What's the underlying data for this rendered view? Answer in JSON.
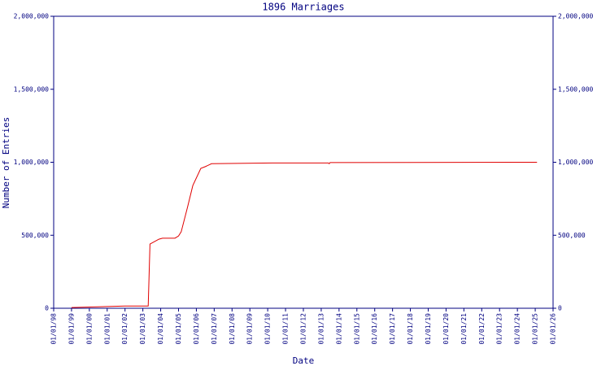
{
  "chart_data": {
    "type": "line",
    "title": "1896 Marriages",
    "x_label": "Date",
    "y_label": "Number of Entries",
    "x": [
      1999.0,
      2002.0,
      2003.3,
      2003.4,
      2003.9,
      2004.1,
      2004.8,
      2005.0,
      2005.15,
      2005.5,
      2005.8,
      2006.25,
      2006.5,
      2006.85,
      2010.25,
      2013.4,
      2013.45,
      2013.5,
      2025.1
    ],
    "series": [
      {
        "name": "Entries",
        "color": "#e00000",
        "values": [
          5000,
          15000,
          15000,
          440000,
          473000,
          480000,
          480000,
          495000,
          524000,
          690000,
          840000,
          958000,
          970000,
          990000,
          995000,
          995000,
          990000,
          998000,
          1000000
        ]
      }
    ],
    "xlim": [
      1998,
      2026
    ],
    "xticks": [
      {
        "value": 1998,
        "label": "01/01/98"
      },
      {
        "value": 1999,
        "label": "01/01/99"
      },
      {
        "value": 2000,
        "label": "01/01/00"
      },
      {
        "value": 2001,
        "label": "01/01/01"
      },
      {
        "value": 2002,
        "label": "01/01/02"
      },
      {
        "value": 2003,
        "label": "01/01/03"
      },
      {
        "value": 2004,
        "label": "01/01/04"
      },
      {
        "value": 2005,
        "label": "01/01/05"
      },
      {
        "value": 2006,
        "label": "01/01/06"
      },
      {
        "value": 2007,
        "label": "01/01/07"
      },
      {
        "value": 2008,
        "label": "01/01/08"
      },
      {
        "value": 2009,
        "label": "01/01/09"
      },
      {
        "value": 2010,
        "label": "01/01/10"
      },
      {
        "value": 2011,
        "label": "01/01/11"
      },
      {
        "value": 2012,
        "label": "01/01/12"
      },
      {
        "value": 2013,
        "label": "01/01/13"
      },
      {
        "value": 2014,
        "label": "01/01/14"
      },
      {
        "value": 2015,
        "label": "01/01/15"
      },
      {
        "value": 2016,
        "label": "01/01/16"
      },
      {
        "value": 2017,
        "label": "01/01/17"
      },
      {
        "value": 2018,
        "label": "01/01/18"
      },
      {
        "value": 2019,
        "label": "01/01/19"
      },
      {
        "value": 2020,
        "label": "01/01/20"
      },
      {
        "value": 2021,
        "label": "01/01/21"
      },
      {
        "value": 2022,
        "label": "01/01/22"
      },
      {
        "value": 2023,
        "label": "01/01/23"
      },
      {
        "value": 2024,
        "label": "01/01/24"
      },
      {
        "value": 2025,
        "label": "01/01/25"
      },
      {
        "value": 2026,
        "label": "01/01/26"
      }
    ],
    "ylim": [
      0,
      2000000
    ],
    "yticks": [
      0,
      {
        "value": 500000,
        "label": "500,000"
      },
      {
        "value": 1000000,
        "label": "1,000,000"
      },
      {
        "value": 1500000,
        "label": "1,500,000"
      },
      {
        "value": 2000000,
        "label": "2,000,000"
      }
    ],
    "axis_color": "#000080"
  }
}
